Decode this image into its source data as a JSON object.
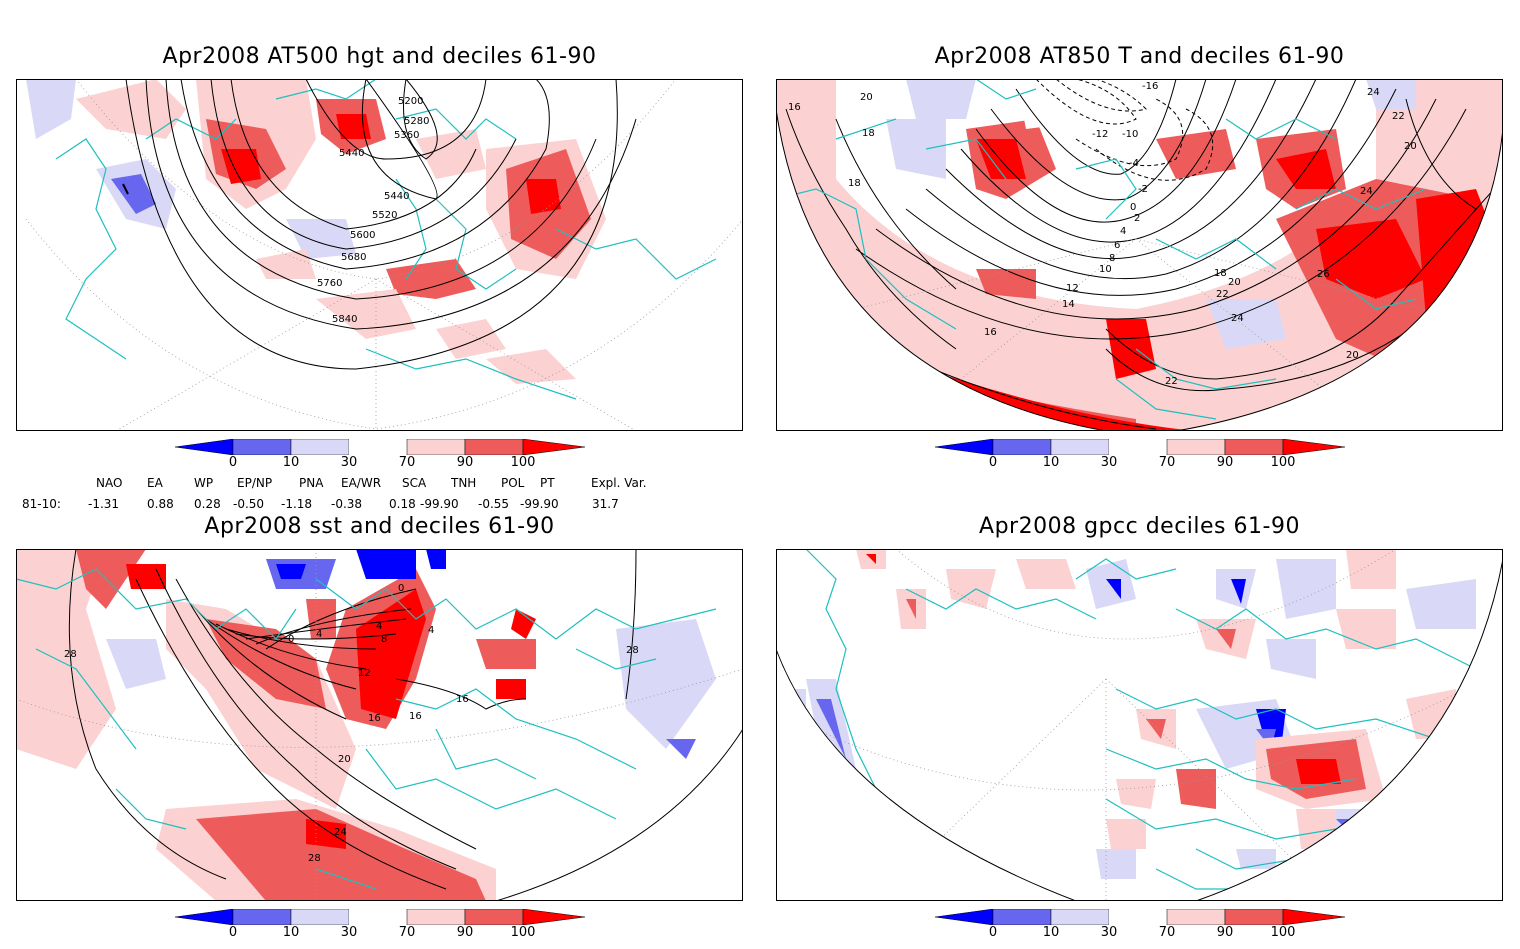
{
  "panels": [
    {
      "title": "Apr2008 AT500 hgt and deciles 61-90",
      "contour_labels": [
        "5200",
        "5280",
        "5360",
        "5440",
        "5440",
        "5520",
        "5600",
        "5680",
        "5760",
        "5840"
      ]
    },
    {
      "title": "Apr2008 AT850 T and deciles 61-90",
      "contour_labels": [
        "-16",
        "-12",
        "-10",
        "-4",
        "-2",
        "0",
        "2",
        "4",
        "6",
        "8",
        "10",
        "12",
        "14",
        "16",
        "16",
        "18",
        "18",
        "18",
        "20",
        "20",
        "20",
        "20",
        "22",
        "22",
        "22",
        "24",
        "24",
        "24",
        "26"
      ]
    },
    {
      "title": "Apr2008 sst and deciles 61-90",
      "contour_labels": [
        "0",
        "0",
        "4",
        "4",
        "4",
        "8",
        "12",
        "16",
        "16",
        "16",
        "20",
        "24",
        "28",
        "28",
        "28"
      ]
    },
    {
      "title": "Apr2008 gpcc deciles 61-90",
      "contour_labels": []
    }
  ],
  "colorbar": {
    "ticks": [
      "0",
      "10",
      "30",
      "70",
      "90",
      "100"
    ],
    "colors": [
      "#0000ff",
      "#6666ee",
      "#d9d9f7",
      "#ffffff",
      "#fcd1d1",
      "#ee5b5b",
      "#ff0000"
    ]
  },
  "indices": {
    "headers": [
      "NAO",
      "EA",
      "WP",
      "EP/NP",
      "PNA",
      "EA/WR",
      "SCA",
      "TNH",
      "POL",
      "PT",
      "Expl. Var."
    ],
    "row_label": "81-10:",
    "values": [
      "-1.31",
      "0.88",
      "0.28",
      "-0.50",
      "-1.18",
      "-0.38",
      "0.18",
      "-99.90",
      "-0.55",
      "-99.90",
      "31.7"
    ]
  },
  "colors": {
    "coast": "#1fbfbf",
    "contour": "#000000",
    "grid": "#999999"
  }
}
